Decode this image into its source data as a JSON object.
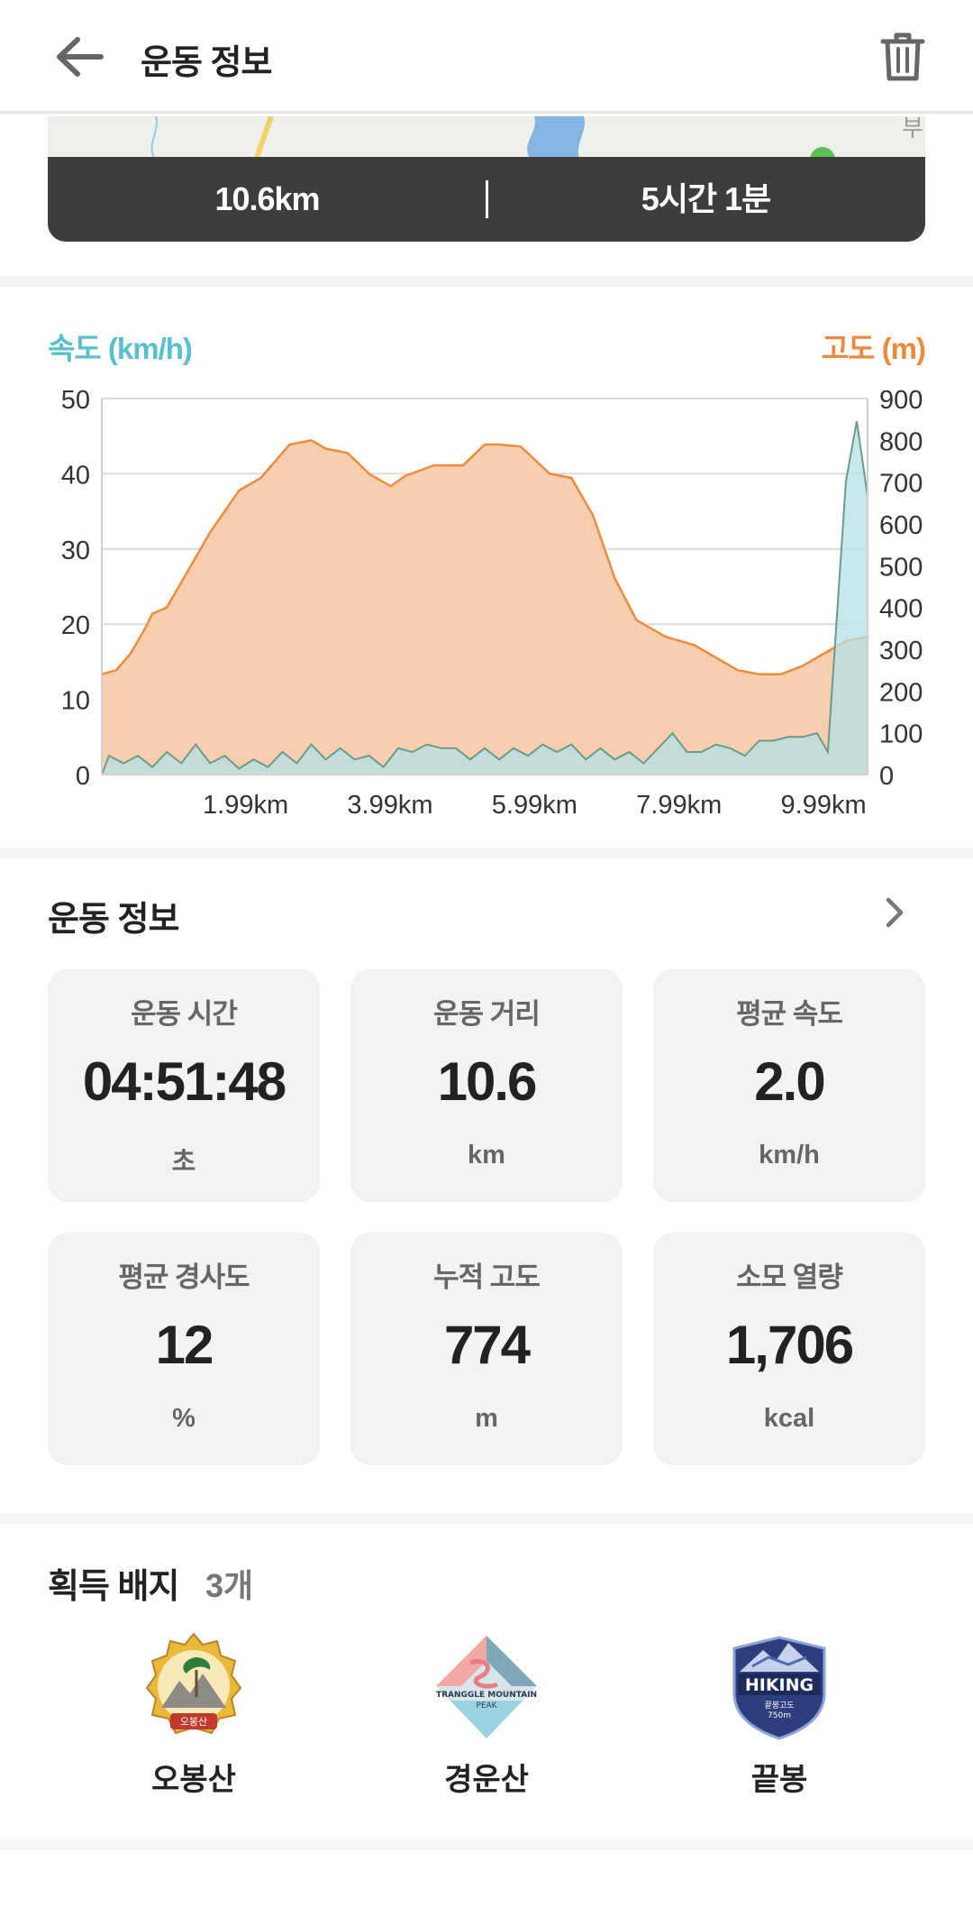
{
  "header": {
    "title": "운동 정보"
  },
  "summary": {
    "distance": "10.6km",
    "duration": "5시간 1분"
  },
  "chart_data": {
    "type": "area",
    "legend_left": "속도 (km/h)",
    "legend_right": "고도 (m)",
    "speed_axis": {
      "ticks": [
        0,
        10,
        20,
        30,
        40,
        50
      ],
      "ylim": [
        0,
        50
      ]
    },
    "altitude_axis": {
      "ticks": [
        0,
        100,
        200,
        300,
        400,
        500,
        600,
        700,
        800,
        900
      ],
      "ylim": [
        0,
        900
      ]
    },
    "x_ticks": [
      "1.99km",
      "3.99km",
      "5.99km",
      "7.99km",
      "9.99km"
    ],
    "x_tick_values": [
      1.99,
      3.99,
      5.99,
      7.99,
      9.99
    ],
    "xlim": [
      0,
      10.6
    ],
    "colors": {
      "altitude": "#ef8a3c",
      "altitude_fill": "#f7cfb0",
      "speed": "#57c0cc",
      "speed_fill": "#b4e2e8"
    },
    "series": [
      {
        "name": "고도 (m)",
        "axis": "right",
        "x": [
          0,
          0.2,
          0.4,
          0.6,
          0.7,
          0.9,
          1.0,
          1.3,
          1.5,
          1.9,
          2.2,
          2.6,
          2.9,
          3.1,
          3.4,
          3.7,
          4.0,
          4.2,
          4.6,
          5.0,
          5.3,
          5.5,
          5.8,
          6.2,
          6.5,
          6.8,
          7.1,
          7.4,
          7.8,
          8.2,
          8.5,
          8.8,
          9.1,
          9.4,
          9.7,
          10.0,
          10.3,
          10.6
        ],
        "values": [
          240,
          250,
          290,
          350,
          385,
          400,
          430,
          520,
          580,
          680,
          710,
          790,
          800,
          780,
          770,
          720,
          690,
          715,
          740,
          740,
          790,
          790,
          785,
          720,
          710,
          620,
          470,
          370,
          330,
          310,
          280,
          250,
          240,
          240,
          260,
          290,
          320,
          330
        ]
      },
      {
        "name": "속도 (km/h)",
        "axis": "left",
        "x": [
          0,
          0.1,
          0.3,
          0.5,
          0.7,
          0.9,
          1.1,
          1.3,
          1.5,
          1.7,
          1.9,
          2.1,
          2.3,
          2.5,
          2.7,
          2.9,
          3.1,
          3.3,
          3.5,
          3.7,
          3.9,
          4.1,
          4.3,
          4.5,
          4.7,
          4.9,
          5.1,
          5.3,
          5.5,
          5.7,
          5.9,
          6.1,
          6.3,
          6.5,
          6.7,
          6.9,
          7.1,
          7.3,
          7.5,
          7.7,
          7.9,
          8.1,
          8.3,
          8.5,
          8.7,
          8.9,
          9.1,
          9.3,
          9.5,
          9.7,
          9.9,
          10.05,
          10.3,
          10.45,
          10.6
        ],
        "values": [
          0,
          2.5,
          1.5,
          2.5,
          1,
          3,
          1.5,
          4,
          1.5,
          2.5,
          0.8,
          2,
          1,
          3,
          1.5,
          4,
          2,
          3.5,
          2,
          2.5,
          1,
          3.5,
          3,
          4,
          3.5,
          3.5,
          2,
          3.5,
          2,
          3.5,
          2.5,
          4,
          3,
          4,
          2,
          3.5,
          2,
          3,
          1.5,
          3.5,
          5.5,
          3,
          3,
          4,
          3.5,
          2.5,
          4.5,
          4.5,
          5,
          5,
          5.5,
          3,
          39,
          47,
          37
        ]
      }
    ]
  },
  "info": {
    "title": "운동 정보",
    "stats": [
      {
        "label": "운동 시간",
        "value": "04:51:48",
        "unit": "초"
      },
      {
        "label": "운동 거리",
        "value": "10.6",
        "unit": "km"
      },
      {
        "label": "평균 속도",
        "value": "2.0",
        "unit": "km/h"
      },
      {
        "label": "평균 경사도",
        "value": "12",
        "unit": "%"
      },
      {
        "label": "누적 고도",
        "value": "774",
        "unit": "m"
      },
      {
        "label": "소모 열량",
        "value": "1,706",
        "unit": "kcal"
      }
    ]
  },
  "badges": {
    "title": "획득 배지",
    "count": "3개",
    "items": [
      {
        "name": "오봉산",
        "icon": "mountain-seal-badge-icon",
        "emblem_text": "오봉산"
      },
      {
        "name": "경운산",
        "icon": "tranggle-peak-badge-icon",
        "emblem_text": "TRANGGLE MOUNTAIN PEAK"
      },
      {
        "name": "끝봉",
        "icon": "hiking-shield-badge-icon",
        "emblem_text": "HIKING 끝봉고도 750m"
      }
    ]
  }
}
